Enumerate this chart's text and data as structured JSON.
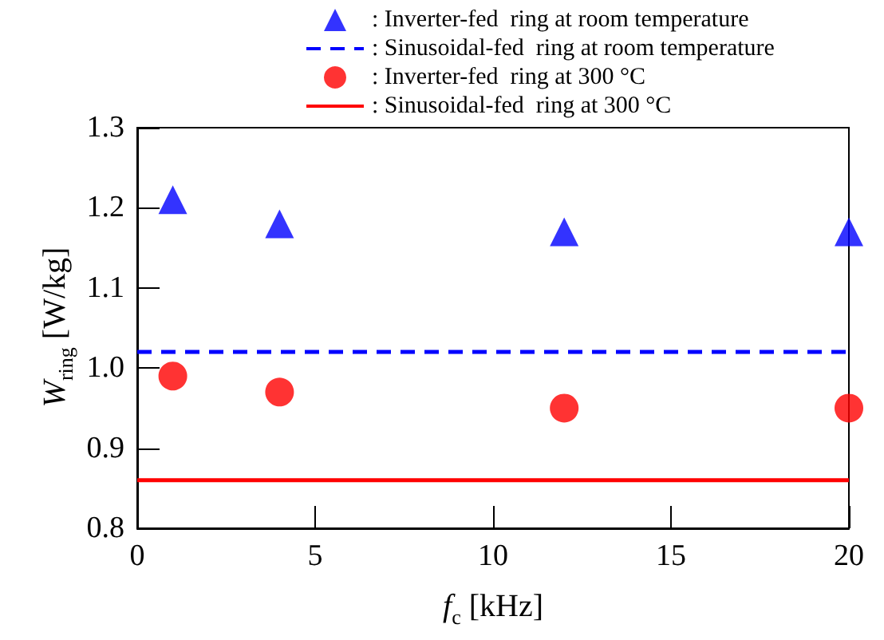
{
  "chart_data": {
    "type": "scatter",
    "xlabel": "f$_{c}$ [kHz]",
    "ylabel": "W$_{ring}$ [W/kg]",
    "xlim": [
      0,
      20
    ],
    "xticks": [
      0,
      5,
      10,
      15,
      20
    ],
    "ylim": [
      0.8,
      1.3
    ],
    "yticks": [
      {
        "value": 0.8,
        "label": "0.8"
      },
      {
        "value": 0.9,
        "label": "0.9"
      },
      {
        "value": 1.0,
        "label": "1.0"
      },
      {
        "value": 1.1,
        "label": "1.1"
      },
      {
        "value": 1.2,
        "label": "1.2"
      },
      {
        "value": 1.3,
        "label": "1.3"
      }
    ],
    "grid": false,
    "legend": "top",
    "series": [
      {
        "name": ": Inverter-fed  ring at room temperature",
        "marker": "triangle",
        "color": "#0000ff",
        "x": [
          1,
          4,
          12,
          20
        ],
        "values": [
          1.21,
          1.18,
          1.17,
          1.17
        ]
      },
      {
        "name": ": Sinusoidal-fed  ring at room temperature",
        "type": "line",
        "marker": "none",
        "line_style": "dashed",
        "color": "#0000ff",
        "x": [
          0,
          20
        ],
        "values": [
          1.02,
          1.02
        ]
      },
      {
        "name": ": Inverter-fed  ring at 300 °C",
        "marker": "circle",
        "color": "#ff0000",
        "x": [
          1,
          4,
          12,
          20
        ],
        "values": [
          0.99,
          0.97,
          0.95,
          0.95
        ]
      },
      {
        "name": ": Sinusoidal-fed  ring at 300 °C",
        "type": "line",
        "marker": "none",
        "line_style": "solid",
        "color": "#ff0000",
        "x": [
          0,
          20
        ],
        "values": [
          0.86,
          0.86
        ]
      }
    ]
  }
}
